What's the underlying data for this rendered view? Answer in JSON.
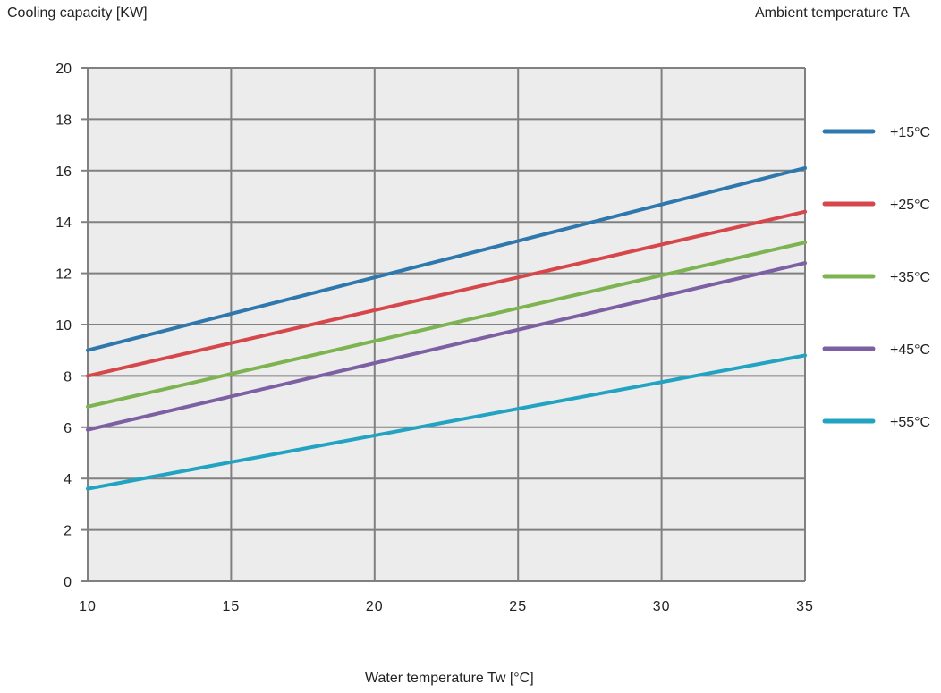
{
  "chart_data": {
    "type": "line",
    "ylabel": "Cooling capacity [KW]",
    "xlabel": "Water temperature Tw [°C]",
    "legend_title": "Ambient temperature   TA",
    "legend_position": "right",
    "grid": true,
    "xlim": [
      10,
      35
    ],
    "ylim": [
      0,
      20
    ],
    "xticks": [
      "10",
      "15",
      "20",
      "25",
      "30",
      "35"
    ],
    "yticks": [
      "0",
      "2",
      "4",
      "6",
      "8",
      "10",
      "12",
      "14",
      "16",
      "18",
      "20"
    ],
    "series": [
      {
        "name": "+15°C",
        "color": "#2f78ad",
        "x": [
          10,
          35
        ],
        "y": [
          9.0,
          16.1
        ]
      },
      {
        "name": "+25°C",
        "color": "#d6474c",
        "x": [
          10,
          35
        ],
        "y": [
          8.0,
          14.4
        ]
      },
      {
        "name": "+35°C",
        "color": "#7db351",
        "x": [
          10,
          35
        ],
        "y": [
          6.8,
          13.2
        ]
      },
      {
        "name": "+45°C",
        "color": "#7d5fa3",
        "x": [
          10,
          35
        ],
        "y": [
          5.9,
          12.4
        ]
      },
      {
        "name": "+55°C",
        "color": "#21a3c1",
        "x": [
          10,
          35
        ],
        "y": [
          3.6,
          8.8
        ]
      }
    ]
  }
}
